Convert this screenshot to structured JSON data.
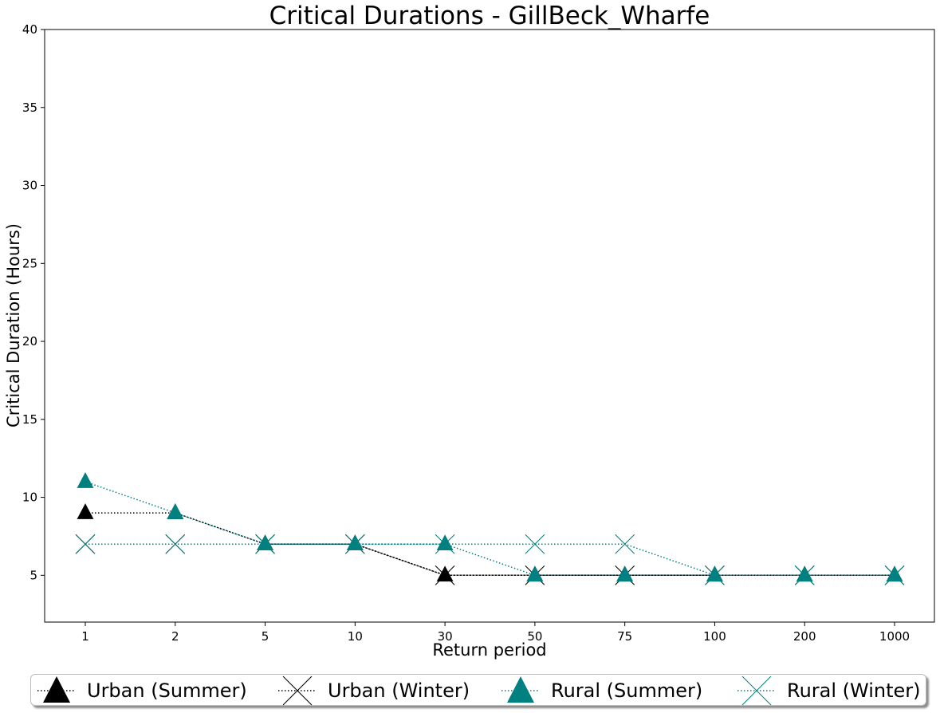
{
  "chart_data": {
    "type": "line",
    "title": "Critical Durations - GillBeck_Wharfe",
    "xlabel": "Return period",
    "ylabel": "Critical Duration (Hours)",
    "categories": [
      "1",
      "2",
      "5",
      "10",
      "30",
      "50",
      "75",
      "100",
      "200",
      "1000"
    ],
    "ylim": [
      2,
      40
    ],
    "yticks": [
      5,
      10,
      15,
      20,
      25,
      30,
      35,
      40
    ],
    "grid": false,
    "legend_position": "bottom-center",
    "series": [
      {
        "name": "Urban (Summer)",
        "values": [
          9,
          9,
          7,
          7,
          5,
          5,
          5,
          5,
          5,
          5
        ],
        "color": "#000000",
        "marker": "triangle"
      },
      {
        "name": "Urban (Winter)",
        "values": [
          7,
          7,
          7,
          7,
          5,
          5,
          5,
          5,
          5,
          5
        ],
        "color": "#000000",
        "marker": "x"
      },
      {
        "name": "Rural (Summer)",
        "values": [
          11,
          9,
          7,
          7,
          7,
          5,
          5,
          5,
          5,
          5
        ],
        "color": "#008080",
        "marker": "triangle"
      },
      {
        "name": "Rural (Winter)",
        "values": [
          7,
          7,
          7,
          7,
          7,
          7,
          7,
          5,
          5,
          5
        ],
        "color": "#008080",
        "marker": "x"
      }
    ]
  }
}
